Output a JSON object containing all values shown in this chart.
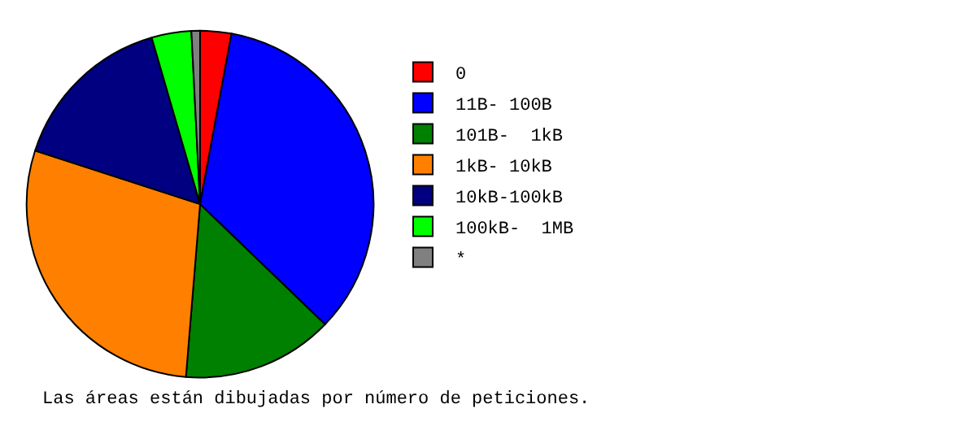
{
  "chart_data": {
    "type": "pie",
    "categories": [
      "0",
      "11B- 100B",
      "101B-  1kB",
      "1kB- 10kB",
      "10kB-100kB",
      "100kB-  1MB",
      "*"
    ],
    "values": [
      2.9,
      34.3,
      14.1,
      28.7,
      15.5,
      3.7,
      0.8
    ],
    "colors": [
      "#ff0000",
      "#0000ff",
      "#008000",
      "#ff8000",
      "#000080",
      "#00ff00",
      "#808080"
    ],
    "legend": "right",
    "annotations": [
      "Las áreas están dibujadas por número de peticiones."
    ]
  }
}
